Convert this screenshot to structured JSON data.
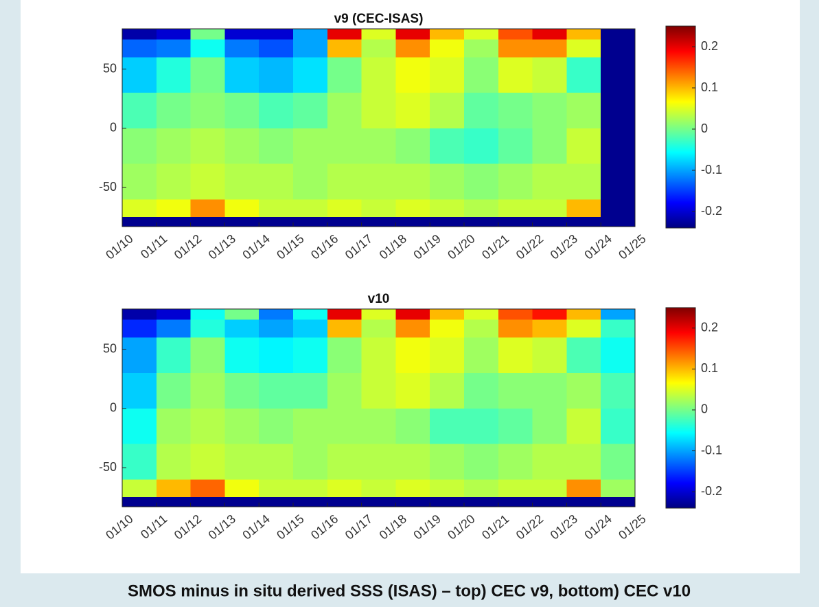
{
  "chart_data": [
    {
      "type": "heatmap",
      "title": "v9 (CEC-ISAS)",
      "x_bins": [
        2010,
        2011,
        2012,
        2013,
        2014,
        2015,
        2016,
        2017,
        2018,
        2019,
        2020,
        2021,
        2022,
        2023,
        2024,
        2025
      ],
      "y_bins": [
        -83,
        -75,
        -60,
        -30,
        0,
        30,
        60,
        75,
        84
      ],
      "values": [
        [
          null,
          null,
          null,
          null,
          null,
          null,
          null,
          null,
          null,
          null,
          null,
          null,
          null,
          null,
          null
        ],
        [
          0.05,
          0.06,
          0.12,
          0.06,
          0.04,
          0.04,
          0.05,
          0.04,
          0.05,
          0.04,
          0.03,
          0.04,
          0.04,
          0.1,
          null
        ],
        [
          0.02,
          0.03,
          0.04,
          0.03,
          0.03,
          0.02,
          0.03,
          0.03,
          0.03,
          0.02,
          0.01,
          0.02,
          0.03,
          0.03,
          null
        ],
        [
          0.01,
          0.02,
          0.03,
          0.02,
          0.01,
          0.02,
          0.02,
          0.02,
          0.01,
          -0.02,
          -0.03,
          -0.01,
          0.01,
          0.04,
          null
        ],
        [
          -0.02,
          0.0,
          0.01,
          0.0,
          -0.02,
          -0.01,
          0.02,
          0.04,
          0.05,
          0.03,
          -0.01,
          0.0,
          0.01,
          0.02,
          null
        ],
        [
          -0.08,
          -0.04,
          0.0,
          -0.08,
          -0.09,
          -0.07,
          0.0,
          0.04,
          0.06,
          0.05,
          0.01,
          0.05,
          0.04,
          -0.03,
          null
        ],
        [
          -0.13,
          -0.12,
          -0.05,
          -0.12,
          -0.14,
          -0.1,
          0.1,
          0.03,
          0.12,
          0.06,
          0.02,
          0.12,
          0.12,
          0.05,
          null
        ],
        [
          -0.22,
          -0.2,
          0.0,
          -0.2,
          -0.2,
          -0.1,
          0.2,
          0.05,
          0.2,
          0.1,
          0.05,
          0.15,
          0.2,
          0.1,
          null
        ]
      ],
      "xlim": [
        2010,
        2025
      ],
      "ylim": [
        -83,
        84
      ],
      "clim": [
        -0.24,
        0.25
      ],
      "xticks": [
        {
          "value": 2010,
          "label": "01/10"
        },
        {
          "value": 2011,
          "label": "01/11"
        },
        {
          "value": 2012,
          "label": "01/12"
        },
        {
          "value": 2013,
          "label": "01/13"
        },
        {
          "value": 2014,
          "label": "01/14"
        },
        {
          "value": 2015,
          "label": "01/15"
        },
        {
          "value": 2016,
          "label": "01/16"
        },
        {
          "value": 2017,
          "label": "01/17"
        },
        {
          "value": 2018,
          "label": "01/18"
        },
        {
          "value": 2019,
          "label": "01/19"
        },
        {
          "value": 2020,
          "label": "01/20"
        },
        {
          "value": 2021,
          "label": "01/21"
        },
        {
          "value": 2022,
          "label": "01/22"
        },
        {
          "value": 2023,
          "label": "01/23"
        },
        {
          "value": 2024,
          "label": "01/24"
        },
        {
          "value": 2025,
          "label": "01/25"
        }
      ],
      "yticks": [
        -50,
        0,
        50
      ],
      "cticks": [
        -0.2,
        -0.1,
        0,
        0.1,
        0.2
      ],
      "colormap": "jet"
    },
    {
      "type": "heatmap",
      "title": "v10",
      "x_bins": [
        2010,
        2011,
        2012,
        2013,
        2014,
        2015,
        2016,
        2017,
        2018,
        2019,
        2020,
        2021,
        2022,
        2023,
        2024,
        2025
      ],
      "y_bins": [
        -83,
        -75,
        -60,
        -30,
        0,
        30,
        60,
        75,
        84
      ],
      "values": [
        [
          null,
          null,
          null,
          null,
          null,
          null,
          null,
          null,
          null,
          null,
          null,
          null,
          null,
          null,
          null
        ],
        [
          0.04,
          0.1,
          0.14,
          0.06,
          0.04,
          0.04,
          0.05,
          0.04,
          0.05,
          0.04,
          0.03,
          0.04,
          0.04,
          0.12,
          0.02
        ],
        [
          -0.03,
          0.03,
          0.04,
          0.03,
          0.03,
          0.02,
          0.03,
          0.03,
          0.03,
          0.02,
          0.01,
          0.02,
          0.03,
          0.03,
          0.0
        ],
        [
          -0.05,
          0.02,
          0.03,
          0.02,
          0.01,
          0.02,
          0.02,
          0.02,
          0.01,
          -0.02,
          -0.02,
          -0.01,
          0.01,
          0.04,
          -0.03
        ],
        [
          -0.08,
          0.0,
          0.02,
          0.0,
          -0.01,
          -0.01,
          0.02,
          0.04,
          0.05,
          0.03,
          0.0,
          0.01,
          0.01,
          0.02,
          -0.02
        ],
        [
          -0.1,
          -0.03,
          0.01,
          -0.05,
          -0.06,
          -0.05,
          0.01,
          0.04,
          0.06,
          0.05,
          0.02,
          0.05,
          0.04,
          -0.02,
          -0.05
        ],
        [
          -0.16,
          -0.12,
          -0.04,
          -0.08,
          -0.1,
          -0.08,
          0.1,
          0.03,
          0.12,
          0.06,
          0.03,
          0.12,
          0.1,
          0.05,
          -0.03
        ],
        [
          -0.22,
          -0.2,
          -0.05,
          0.0,
          -0.12,
          -0.05,
          0.2,
          0.05,
          0.2,
          0.1,
          0.05,
          0.15,
          0.18,
          0.1,
          -0.1
        ]
      ],
      "xlim": [
        2010,
        2025
      ],
      "ylim": [
        -83,
        84
      ],
      "clim": [
        -0.24,
        0.25
      ],
      "xticks": [
        {
          "value": 2010,
          "label": "01/10"
        },
        {
          "value": 2011,
          "label": "01/11"
        },
        {
          "value": 2012,
          "label": "01/12"
        },
        {
          "value": 2013,
          "label": "01/13"
        },
        {
          "value": 2014,
          "label": "01/14"
        },
        {
          "value": 2015,
          "label": "01/15"
        },
        {
          "value": 2016,
          "label": "01/16"
        },
        {
          "value": 2017,
          "label": "01/17"
        },
        {
          "value": 2018,
          "label": "01/18"
        },
        {
          "value": 2019,
          "label": "01/19"
        },
        {
          "value": 2020,
          "label": "01/20"
        },
        {
          "value": 2021,
          "label": "01/21"
        },
        {
          "value": 2022,
          "label": "01/22"
        },
        {
          "value": 2023,
          "label": "01/23"
        },
        {
          "value": 2024,
          "label": "01/24"
        },
        {
          "value": 2025,
          "label": "01/25"
        }
      ],
      "yticks": [
        -50,
        0,
        50
      ],
      "cticks": [
        -0.2,
        -0.1,
        0,
        0.1,
        0.2
      ],
      "colormap": "jet"
    }
  ],
  "caption": "SMOS minus in situ derived SSS (ISAS) – top) CEC v9, bottom) CEC v10"
}
